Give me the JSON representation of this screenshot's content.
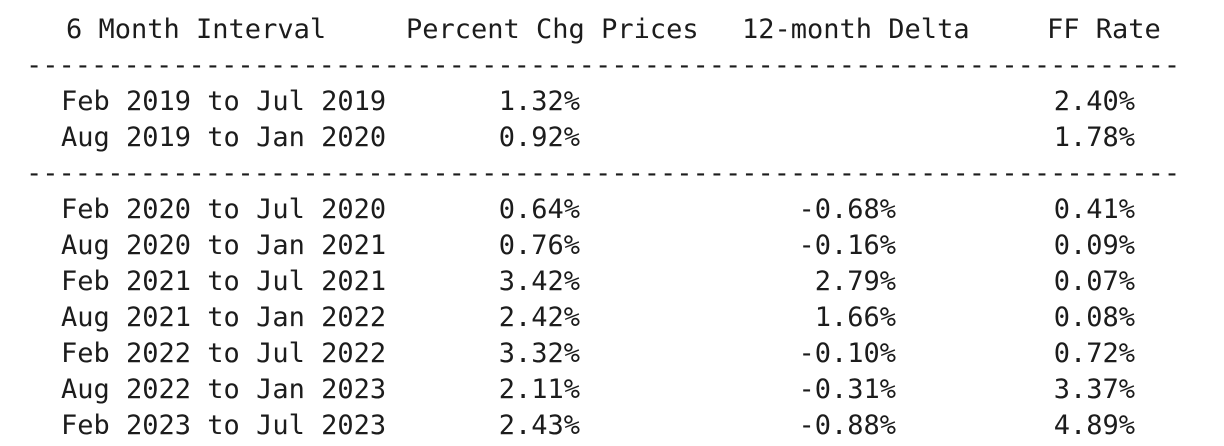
{
  "page": {
    "background": "#ffffff",
    "text_color": "#1c1c1c"
  },
  "table": {
    "headers": [
      {
        "label": "6 Month Interval"
      },
      {
        "label": "Percent Chg Prices"
      },
      {
        "label": "12-month Delta"
      },
      {
        "label": "FF Rate"
      }
    ],
    "separator": "-----------------------------------------------------------------------",
    "sections": [
      {
        "rows": [
          [
            "Feb 2019 to Jul 2019",
            "1.32%",
            "",
            "2.40%"
          ],
          [
            "Aug 2019 to Jan 2020",
            "0.92%",
            "",
            "1.78%"
          ]
        ]
      },
      {
        "rows": [
          [
            "Feb 2020 to Jul 2020",
            "0.64%",
            "-0.68%",
            "0.41%"
          ],
          [
            "Aug 2020 to Jan 2021",
            "0.76%",
            "-0.16%",
            "0.09%"
          ],
          [
            "Feb 2021 to Jul 2021",
            "3.42%",
            "2.79%",
            "0.07%"
          ],
          [
            "Aug 2021 to Jan 2022",
            "2.42%",
            "1.66%",
            "0.08%"
          ],
          [
            "Feb 2022 to Jul 2022",
            "3.32%",
            "-0.10%",
            "0.72%"
          ],
          [
            "Aug 2022 to Jan 2023",
            "2.11%",
            "-0.31%",
            "3.37%"
          ],
          [
            "Feb 2023 to Jul 2023",
            "2.43%",
            "-0.88%",
            "4.89%"
          ]
        ]
      }
    ]
  }
}
